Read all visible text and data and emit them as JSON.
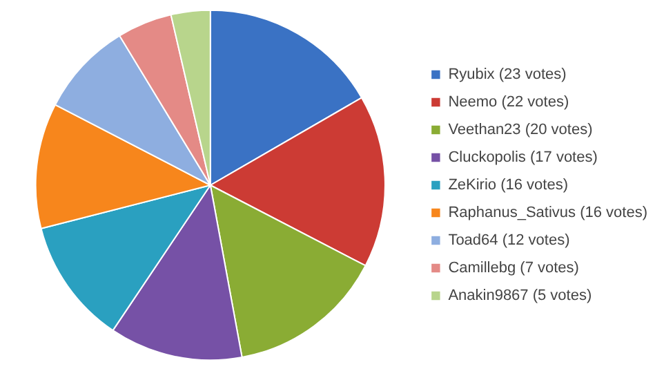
{
  "chart_data": {
    "type": "pie",
    "categories": [
      "Ryubix (23 votes)",
      "Neemo (22 votes)",
      "Veethan23 (20 votes)",
      "Cluckopolis (17 votes)",
      "ZeKirio (16 votes)",
      "Raphanus_Sativus (16 votes)",
      "Toad64 (12 votes)",
      "Camillebg (7 votes)",
      "Anakin9867 (5 votes)"
    ],
    "values": [
      23,
      22,
      20,
      17,
      16,
      16,
      12,
      7,
      5
    ],
    "colors": [
      "#3a72c4",
      "#cc3b34",
      "#8aac34",
      "#7651a6",
      "#2aa0c0",
      "#f7861c",
      "#8eaee0",
      "#e48a86",
      "#b8d58c"
    ],
    "legend": "right"
  }
}
